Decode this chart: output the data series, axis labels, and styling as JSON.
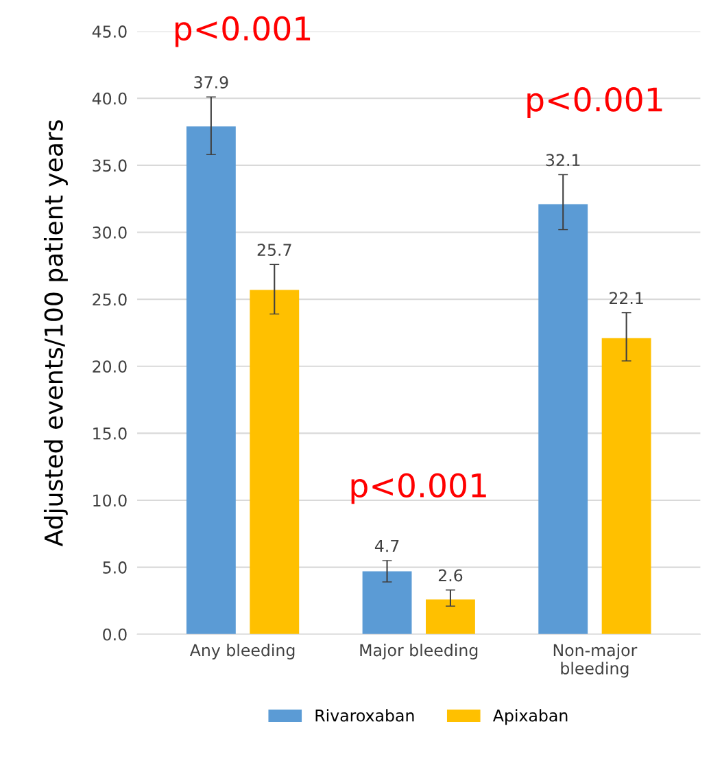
{
  "chart_data": {
    "type": "bar",
    "ylabel": "Adjusted events/100 patient years",
    "categories": [
      "Any bleeding",
      "Major bleeding",
      "Non-major\nbleeding"
    ],
    "series": [
      {
        "name": "Rivaroxaban",
        "color": "#5b9bd5",
        "values": [
          37.9,
          4.7,
          32.1
        ],
        "errors": [
          [
            35.8,
            40.1
          ],
          [
            3.9,
            5.5
          ],
          [
            30.2,
            34.3
          ]
        ]
      },
      {
        "name": "Apixaban",
        "color": "#ffc000",
        "values": [
          25.7,
          2.6,
          22.1
        ],
        "errors": [
          [
            23.9,
            27.6
          ],
          [
            2.1,
            3.3
          ],
          [
            20.4,
            24.0
          ]
        ]
      }
    ],
    "ylim": [
      0,
      45
    ],
    "yticks": [
      {
        "value": 0,
        "label": "0.0"
      },
      {
        "value": 5,
        "label": "5.0"
      },
      {
        "value": 10,
        "label": "10.0"
      },
      {
        "value": 15,
        "label": "15.0"
      },
      {
        "value": 20,
        "label": "20.0"
      },
      {
        "value": 25,
        "label": "25.0"
      },
      {
        "value": 30,
        "label": "30.0"
      },
      {
        "value": 35,
        "label": "35.0"
      },
      {
        "value": 40,
        "label": "40.0"
      },
      {
        "value": 45,
        "label": "45.0"
      }
    ],
    "grid": "y",
    "legend": "bottom",
    "data_labels": true,
    "annotations": [
      "p<0.001",
      "p<0.001",
      "p<0.001"
    ]
  }
}
